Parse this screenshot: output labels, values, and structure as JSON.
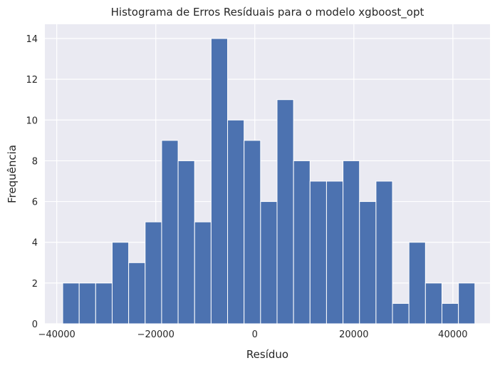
{
  "chart_data": {
    "type": "bar",
    "title": "Histograma de Erros Resíduais para o modelo xgboost_opt",
    "xlabel": "Resíduo",
    "ylabel": "Frequência",
    "bin_start": -38800,
    "bin_width": 3330,
    "values": [
      2,
      2,
      2,
      4,
      3,
      5,
      9,
      8,
      5,
      14,
      10,
      9,
      6,
      11,
      8,
      7,
      7,
      8,
      6,
      7,
      1,
      4,
      2,
      1,
      2
    ],
    "xlim": [
      -42400,
      47500
    ],
    "ylim": [
      0,
      14.7
    ],
    "xticks": [
      -40000,
      -20000,
      0,
      20000,
      40000
    ],
    "xtick_labels": [
      "−40000",
      "−20000",
      "0",
      "20000",
      "40000"
    ],
    "yticks": [
      0,
      2,
      4,
      6,
      8,
      10,
      12,
      14
    ],
    "ytick_labels": [
      "0",
      "2",
      "4",
      "6",
      "8",
      "10",
      "12",
      "14"
    ],
    "grid": true,
    "bar_color": "#4c72b0",
    "background_color": "#eaeaf2",
    "grid_color": "#ffffff"
  }
}
